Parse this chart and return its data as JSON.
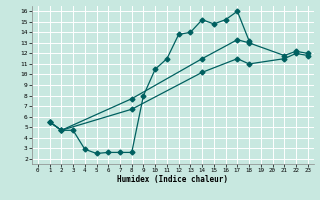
{
  "xlabel": "Humidex (Indice chaleur)",
  "bg_color": "#c8e8e0",
  "grid_color": "#ffffff",
  "line_color": "#006060",
  "xlim": [
    -0.5,
    23.5
  ],
  "ylim": [
    1.5,
    16.5
  ],
  "xticks": [
    0,
    1,
    2,
    3,
    4,
    5,
    6,
    7,
    8,
    9,
    10,
    11,
    12,
    13,
    14,
    15,
    16,
    17,
    18,
    19,
    20,
    21,
    22,
    23
  ],
  "yticks": [
    2,
    3,
    4,
    5,
    6,
    7,
    8,
    9,
    10,
    11,
    12,
    13,
    14,
    15,
    16
  ],
  "line1_x": [
    1,
    2,
    3,
    4,
    5,
    6,
    7,
    8,
    9,
    10,
    11,
    12,
    13,
    14,
    15,
    16,
    17,
    18
  ],
  "line1_y": [
    5.5,
    4.7,
    4.7,
    2.9,
    2.5,
    2.6,
    2.6,
    2.6,
    8.0,
    10.5,
    11.5,
    13.8,
    14.0,
    15.2,
    14.8,
    15.2,
    16.0,
    13.2
  ],
  "line2_x": [
    1,
    2,
    8,
    14,
    17,
    18,
    21,
    22,
    23
  ],
  "line2_y": [
    5.5,
    4.7,
    7.7,
    11.5,
    13.3,
    13.0,
    11.8,
    12.2,
    12.0
  ],
  "line3_x": [
    1,
    2,
    8,
    14,
    17,
    18,
    21,
    22,
    23
  ],
  "line3_y": [
    5.5,
    4.7,
    6.7,
    10.2,
    11.5,
    11.0,
    11.5,
    12.0,
    11.8
  ]
}
